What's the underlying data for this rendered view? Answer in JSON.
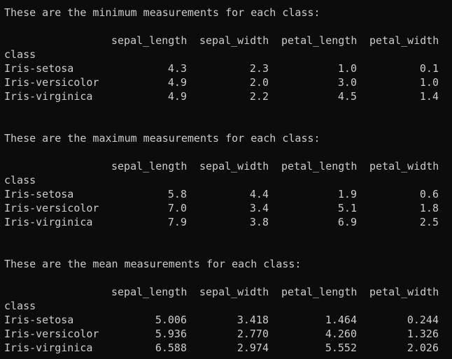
{
  "sections": [
    {
      "heading": "These are the minimum measurements for each class:",
      "columns": [
        "sepal_length",
        "sepal_width",
        "petal_length",
        "petal_width"
      ],
      "index_name": "class",
      "rows": [
        {
          "label": "Iris-setosa",
          "values": [
            "4.3",
            "2.3",
            "1.0",
            "0.1"
          ]
        },
        {
          "label": "Iris-versicolor",
          "values": [
            "4.9",
            "2.0",
            "3.0",
            "1.0"
          ]
        },
        {
          "label": "Iris-virginica",
          "values": [
            "4.9",
            "2.2",
            "4.5",
            "1.4"
          ]
        }
      ]
    },
    {
      "heading": "These are the maximum measurements for each class:",
      "columns": [
        "sepal_length",
        "sepal_width",
        "petal_length",
        "petal_width"
      ],
      "index_name": "class",
      "rows": [
        {
          "label": "Iris-setosa",
          "values": [
            "5.8",
            "4.4",
            "1.9",
            "0.6"
          ]
        },
        {
          "label": "Iris-versicolor",
          "values": [
            "7.0",
            "3.4",
            "5.1",
            "1.8"
          ]
        },
        {
          "label": "Iris-virginica",
          "values": [
            "7.9",
            "3.8",
            "6.9",
            "2.5"
          ]
        }
      ]
    },
    {
      "heading": "These are the mean measurements for each class:",
      "columns": [
        "sepal_length",
        "sepal_width",
        "petal_length",
        "petal_width"
      ],
      "index_name": "class",
      "rows": [
        {
          "label": "Iris-setosa",
          "values": [
            "5.006",
            "3.418",
            "1.464",
            "0.244"
          ]
        },
        {
          "label": "Iris-versicolor",
          "values": [
            "5.936",
            "2.770",
            "4.260",
            "1.326"
          ]
        },
        {
          "label": "Iris-virginica",
          "values": [
            "6.588",
            "2.974",
            "5.552",
            "2.026"
          ]
        }
      ]
    }
  ]
}
